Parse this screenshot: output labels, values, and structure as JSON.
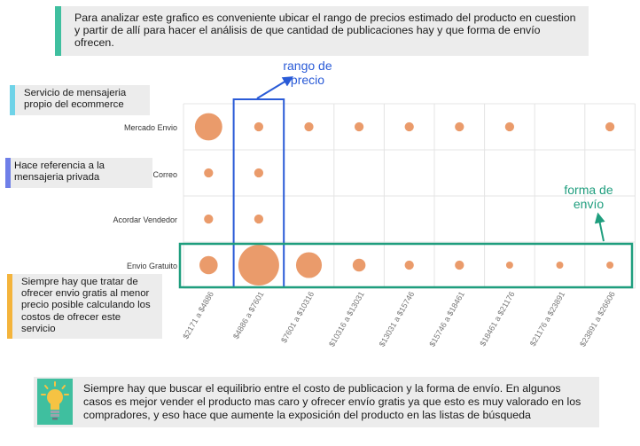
{
  "notes": {
    "top": "Para analizar este grafico es conveniente ubicar el rango de precios estimado del producto en cuestion y partir de allí para hacer el análisis de que cantidad de publicaciones hay y que forma de envío ofrecen.",
    "mensajeria": "Servicio de mensajeria propio del ecommerce",
    "privada": "Hace referencia a la mensajeria privada",
    "gratis": "Siempre hay que tratar de ofrecer envio gratis al menor precio posible calculando los costos de ofrecer este servicio",
    "bottom": "Siempre hay que buscar el equilibrio entre el costo de publicacion y la forma de envío. En algunos casos es mejor vender el producto mas caro y ofrecer envío gratis ya que esto es muy valorado en los compradores, y eso hace que aumente la exposición del producto en las listas de búsqueda"
  },
  "callouts": {
    "rango": "rango de precio",
    "envio": "forma de envío"
  },
  "colors": {
    "bubble": "#e8925e",
    "grid": "#e4e4e4",
    "highlight_price": "#2a5bd7",
    "highlight_shipping": "#1f9e7e",
    "note_teal": "#3fbf9f",
    "note_cyan": "#6fd3e8",
    "note_blue": "#6f7fe8",
    "note_orange": "#f4b43c",
    "bulb_bg": "#3fbf9f"
  },
  "icons": {
    "bulb": "lightbulb-icon"
  },
  "chart_data": {
    "type": "scatter",
    "categories": [
      "$2171 a $4886",
      "$4886 a $7601",
      "$7601 a $10316",
      "$10316 a $13031",
      "$13031 a $15746",
      "$15746 a $18461",
      "$18461 a $21176",
      "$21176 a $23891",
      "$23891 a $26606"
    ],
    "rows": [
      "Mercado Envio",
      "Correo",
      "Acordar Vendedor",
      "Envio Gratuito"
    ],
    "series": [
      {
        "values": [
          9,
          1,
          1,
          1,
          1,
          1,
          1,
          0,
          1
        ]
      },
      {
        "values": [
          1,
          1,
          0,
          0,
          0,
          0,
          0,
          0,
          0
        ]
      },
      {
        "values": [
          1,
          1,
          0,
          0,
          0,
          0,
          0,
          0,
          0
        ]
      },
      {
        "values": [
          4,
          20,
          8,
          2,
          1,
          1,
          0.6,
          0.6,
          0.6
        ]
      }
    ],
    "highlight_column": "$4886 a $7601",
    "highlight_row": "Envio Gratuito",
    "grid": true
  }
}
